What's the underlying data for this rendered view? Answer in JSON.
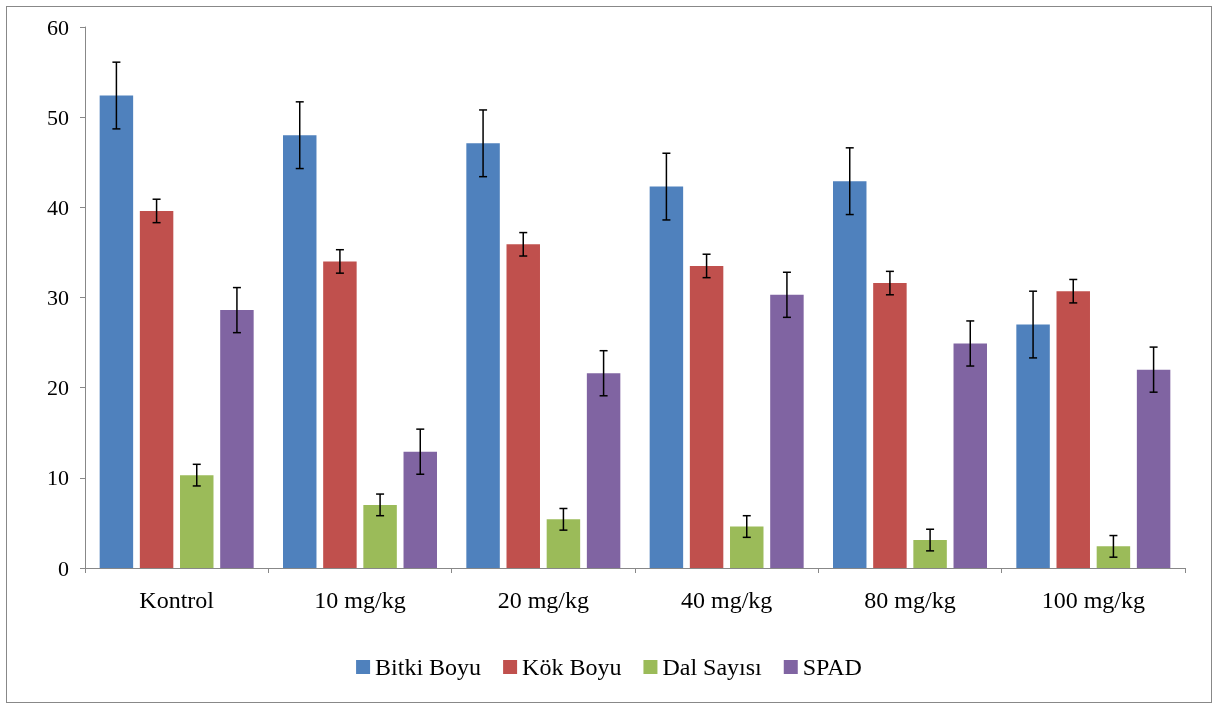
{
  "chart_data": {
    "type": "bar",
    "categories": [
      "Kontrol",
      "10 mg/kg",
      "20 mg/kg",
      "40 mg/kg",
      "80 mg/kg",
      "100 mg/kg"
    ],
    "series": [
      {
        "name": "Bitki Boyu",
        "color": "#4f81bd",
        "values": [
          52.4,
          48.0,
          47.1,
          42.3,
          42.9,
          27.0
        ],
        "errors": [
          3.7,
          3.7,
          3.7,
          3.7,
          3.7,
          3.7
        ]
      },
      {
        "name": "Kök Boyu",
        "color": "#c0504d",
        "values": [
          39.6,
          34.0,
          35.9,
          33.5,
          31.6,
          30.7
        ],
        "errors": [
          1.3,
          1.3,
          1.3,
          1.3,
          1.3,
          1.3
        ]
      },
      {
        "name": "Dal Sayısı",
        "color": "#9bbb59",
        "values": [
          10.3,
          7.0,
          5.4,
          4.6,
          3.1,
          2.4
        ],
        "errors": [
          1.2,
          1.2,
          1.2,
          1.2,
          1.2,
          1.2
        ]
      },
      {
        "name": "SPAD",
        "color": "#8064a2",
        "values": [
          28.6,
          12.9,
          21.6,
          30.3,
          24.9,
          22.0
        ],
        "errors": [
          2.5,
          2.5,
          2.5,
          2.5,
          2.5,
          2.5
        ]
      }
    ],
    "ylim": [
      0,
      60
    ],
    "yticks": [
      0,
      10,
      20,
      30,
      40,
      50,
      60
    ],
    "grid": false,
    "legend": "bottom"
  }
}
